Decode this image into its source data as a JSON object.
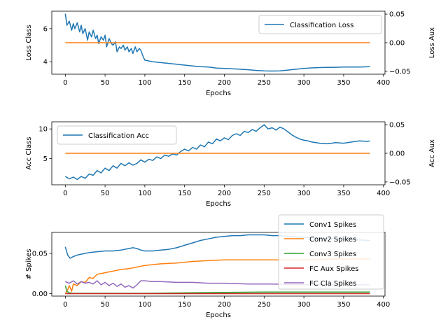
{
  "chart_data": [
    {
      "type": "line",
      "xlabel": "Epochs",
      "ylabel": "Loss Class",
      "ylabel_right": "Loss Aux",
      "xlim": [
        -17,
        402
      ],
      "ylim": [
        3.25,
        7.05
      ],
      "ylim_right": [
        -0.055,
        0.055
      ],
      "xticks": [
        0,
        50,
        100,
        150,
        200,
        250,
        300,
        350,
        400
      ],
      "yticks": [
        4,
        6
      ],
      "yticks_right": [
        -0.05,
        0.0,
        0.05
      ],
      "ytick_labels_right": [
        "−0.05",
        "0.00",
        "0.05"
      ],
      "legend": {
        "loc": "upper right",
        "entries": [
          "Classification Loss"
        ]
      },
      "series": [
        {
          "name": "Classification Loss",
          "color": "#1f77b4",
          "axis": "left",
          "x": [
            0,
            2,
            5,
            8,
            10,
            12,
            15,
            18,
            20,
            22,
            25,
            28,
            30,
            33,
            35,
            38,
            40,
            42,
            45,
            48,
            50,
            52,
            55,
            58,
            60,
            63,
            65,
            68,
            70,
            73,
            75,
            78,
            80,
            83,
            85,
            88,
            90,
            93,
            95,
            98,
            100,
            105,
            110,
            120,
            130,
            140,
            150,
            160,
            170,
            180,
            190,
            200,
            210,
            220,
            230,
            240,
            250,
            260,
            270,
            280,
            290,
            300,
            310,
            320,
            330,
            340,
            350,
            360,
            370,
            383
          ],
          "values": [
            6.9,
            6.2,
            6.45,
            5.9,
            6.3,
            6.0,
            6.35,
            5.8,
            6.2,
            5.7,
            6.0,
            5.3,
            5.8,
            5.5,
            5.9,
            5.4,
            5.6,
            5.1,
            5.5,
            5.3,
            5.6,
            4.9,
            5.4,
            5.1,
            5.0,
            5.2,
            4.6,
            4.9,
            4.8,
            5.0,
            4.7,
            4.9,
            4.6,
            4.8,
            4.5,
            4.9,
            4.6,
            4.8,
            4.7,
            4.3,
            4.1,
            4.05,
            4.0,
            3.95,
            3.9,
            3.85,
            3.8,
            3.75,
            3.7,
            3.68,
            3.62,
            3.6,
            3.58,
            3.55,
            3.52,
            3.48,
            3.45,
            3.44,
            3.45,
            3.5,
            3.55,
            3.6,
            3.63,
            3.65,
            3.66,
            3.67,
            3.68,
            3.68,
            3.68,
            3.7
          ]
        },
        {
          "name": "",
          "color": "#ff7f0e",
          "axis": "right",
          "x": [
            0,
            383
          ],
          "values": [
            0.0,
            0.0
          ]
        }
      ]
    },
    {
      "type": "line",
      "xlabel": "Epochs",
      "ylabel": "Acc Class",
      "ylabel_right": "Acc Aux",
      "xlim": [
        -17,
        402
      ],
      "ylim": [
        0.6,
        11.2
      ],
      "ylim_right": [
        -0.055,
        0.055
      ],
      "xticks": [
        0,
        50,
        100,
        150,
        200,
        250,
        300,
        350,
        400
      ],
      "yticks": [
        5,
        10
      ],
      "yticks_right": [
        -0.05,
        0.0,
        0.05
      ],
      "ytick_labels_right": [
        "−0.05",
        "0.00",
        "0.05"
      ],
      "legend": {
        "loc": "upper left",
        "entries": [
          "Classification Acc"
        ]
      },
      "series": [
        {
          "name": "Classification Acc",
          "color": "#1f77b4",
          "axis": "left",
          "x": [
            0,
            5,
            10,
            15,
            20,
            25,
            30,
            35,
            40,
            45,
            50,
            55,
            60,
            65,
            70,
            75,
            80,
            85,
            90,
            95,
            100,
            105,
            110,
            115,
            120,
            125,
            130,
            135,
            140,
            145,
            150,
            155,
            160,
            165,
            170,
            175,
            180,
            185,
            190,
            195,
            200,
            205,
            210,
            215,
            220,
            225,
            230,
            235,
            240,
            245,
            250,
            255,
            260,
            265,
            270,
            275,
            280,
            285,
            290,
            295,
            300,
            305,
            310,
            320,
            330,
            340,
            350,
            360,
            370,
            380,
            383
          ],
          "values": [
            2.0,
            1.6,
            1.9,
            1.5,
            2.0,
            1.7,
            2.4,
            2.2,
            3.0,
            2.6,
            3.4,
            3.0,
            3.8,
            3.4,
            4.2,
            3.8,
            4.3,
            3.9,
            4.2,
            4.8,
            4.4,
            4.9,
            4.7,
            5.3,
            5.0,
            5.6,
            5.4,
            5.8,
            5.6,
            6.2,
            6.6,
            6.3,
            6.9,
            6.6,
            7.3,
            7.0,
            7.8,
            7.5,
            8.3,
            8.0,
            8.5,
            8.2,
            8.9,
            9.2,
            8.9,
            9.6,
            9.4,
            9.9,
            9.6,
            10.2,
            10.7,
            10.0,
            10.2,
            9.8,
            10.3,
            10.0,
            9.5,
            9.0,
            8.6,
            8.3,
            8.1,
            8.0,
            7.8,
            7.6,
            7.5,
            7.7,
            7.6,
            7.8,
            8.0,
            7.9,
            8.0
          ]
        },
        {
          "name": "",
          "color": "#ff7f0e",
          "axis": "right",
          "x": [
            0,
            383
          ],
          "values": [
            0.0,
            0.0
          ]
        }
      ]
    },
    {
      "type": "line",
      "xlabel": "Epochs",
      "ylabel": "# Spikes",
      "xlim": [
        -17,
        402
      ],
      "ylim": [
        -0.003,
        0.076
      ],
      "xticks": [
        0,
        50,
        100,
        150,
        200,
        250,
        300,
        350,
        400
      ],
      "yticks": [
        0.0,
        0.05
      ],
      "ytick_labels": [
        "0.00",
        "0.05"
      ],
      "legend": {
        "loc": "upper right",
        "entries": [
          "Conv1 Spikes",
          "Conv2 Spikes",
          "Conv3 Spikes",
          "FC Aux Spikes",
          "FC Cla Spikes"
        ]
      },
      "series": [
        {
          "name": "Conv1 Spikes",
          "color": "#1f77b4",
          "x": [
            0,
            3,
            6,
            10,
            15,
            20,
            30,
            40,
            50,
            60,
            70,
            80,
            85,
            90,
            95,
            100,
            110,
            120,
            130,
            140,
            150,
            160,
            170,
            180,
            190,
            200,
            210,
            220,
            230,
            240,
            250,
            260,
            270,
            280,
            300,
            320,
            340,
            360,
            383
          ],
          "values": [
            0.058,
            0.048,
            0.044,
            0.046,
            0.048,
            0.049,
            0.051,
            0.052,
            0.053,
            0.053,
            0.054,
            0.056,
            0.057,
            0.056,
            0.054,
            0.053,
            0.053,
            0.054,
            0.055,
            0.057,
            0.06,
            0.063,
            0.066,
            0.068,
            0.07,
            0.071,
            0.072,
            0.072,
            0.073,
            0.073,
            0.073,
            0.072,
            0.072,
            0.071,
            0.07,
            0.069,
            0.068,
            0.067,
            0.066
          ]
        },
        {
          "name": "Conv2 Spikes",
          "color": "#ff7f0e",
          "x": [
            0,
            3,
            5,
            8,
            10,
            15,
            20,
            25,
            30,
            35,
            40,
            45,
            50,
            55,
            60,
            70,
            80,
            90,
            100,
            120,
            140,
            160,
            180,
            200,
            230,
            260,
            300,
            340,
            383
          ],
          "values": [
            0.0,
            0.005,
            0.01,
            0.003,
            0.012,
            0.01,
            0.015,
            0.014,
            0.02,
            0.019,
            0.024,
            0.025,
            0.026,
            0.027,
            0.028,
            0.03,
            0.031,
            0.033,
            0.035,
            0.037,
            0.038,
            0.04,
            0.041,
            0.042,
            0.042,
            0.042,
            0.042,
            0.043,
            0.043
          ]
        },
        {
          "name": "Conv3 Spikes",
          "color": "#2ca02c",
          "x": [
            0,
            2,
            5,
            10,
            50,
            100,
            150,
            200,
            250,
            300,
            350,
            383
          ],
          "values": [
            0.01,
            0.003,
            0.001,
            0.0005,
            0.0005,
            0.0005,
            0.001,
            0.0015,
            0.002,
            0.002,
            0.002,
            0.002
          ]
        },
        {
          "name": "FC Aux Spikes",
          "color": "#d62728",
          "x": [
            0,
            383
          ],
          "values": [
            0.0,
            0.0
          ]
        },
        {
          "name": "FC Cla Spikes",
          "color": "#9467bd",
          "x": [
            0,
            5,
            10,
            15,
            20,
            25,
            30,
            35,
            40,
            45,
            50,
            55,
            60,
            65,
            70,
            75,
            80,
            85,
            90,
            95,
            100,
            110,
            120,
            140,
            160,
            180,
            200,
            230,
            260,
            300,
            340,
            383
          ],
          "values": [
            0.015,
            0.013,
            0.016,
            0.012,
            0.015,
            0.013,
            0.014,
            0.012,
            0.016,
            0.011,
            0.014,
            0.01,
            0.013,
            0.009,
            0.012,
            0.008,
            0.01,
            0.007,
            0.011,
            0.016,
            0.016,
            0.015,
            0.015,
            0.014,
            0.014,
            0.013,
            0.013,
            0.012,
            0.012,
            0.011,
            0.011,
            0.011
          ]
        }
      ]
    }
  ]
}
